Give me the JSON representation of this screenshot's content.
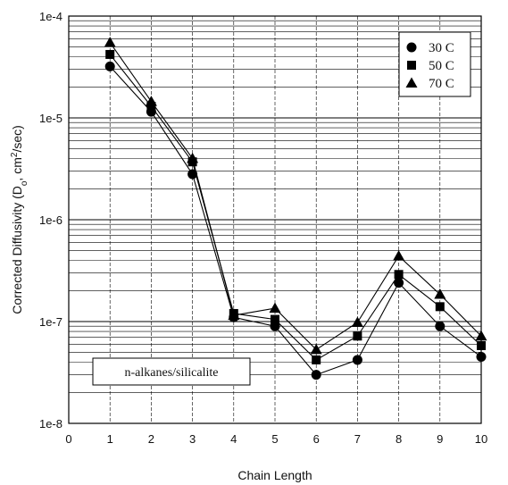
{
  "chart_data": {
    "type": "line",
    "title": "",
    "xlabel": "Chain Length",
    "ylabel": "Corrected Diffusivity (D",
    "ylabel_sub": "o",
    "ylabel_rest": ", cm",
    "ylabel_sup": "2",
    "ylabel_end": "/sec)",
    "x_ticks": [
      "0",
      "1",
      "2",
      "3",
      "4",
      "5",
      "6",
      "7",
      "8",
      "9",
      "10"
    ],
    "y_ticks": [
      "1e-8",
      "1e-7",
      "1e-6",
      "1e-5",
      "1e-4"
    ],
    "xlim": [
      0,
      10
    ],
    "ylim": [
      1e-08,
      0.0001
    ],
    "y_scale": "log",
    "grid": true,
    "legend_position": "top-right",
    "annotation": "n-alkanes/silicalite",
    "x": [
      1,
      2,
      3,
      4,
      5,
      6,
      7,
      8,
      9,
      10
    ],
    "series": [
      {
        "name": "30 C",
        "marker": "circle",
        "values": [
          3.2e-05,
          1.15e-05,
          2.8e-06,
          1.1e-07,
          9e-08,
          3e-08,
          4.2e-08,
          2.4e-07,
          9e-08,
          4.5e-08
        ]
      },
      {
        "name": "50 C",
        "marker": "square",
        "values": [
          4.2e-05,
          1.3e-05,
          3.7e-06,
          1.2e-07,
          1.05e-07,
          4.2e-08,
          7.2e-08,
          2.9e-07,
          1.4e-07,
          5.8e-08
        ]
      },
      {
        "name": "70 C",
        "marker": "triangle",
        "values": [
          5.5e-05,
          1.45e-05,
          4e-06,
          1.15e-07,
          1.35e-07,
          5.3e-08,
          9.8e-08,
          4.4e-07,
          1.85e-07,
          7.2e-08
        ]
      }
    ]
  }
}
